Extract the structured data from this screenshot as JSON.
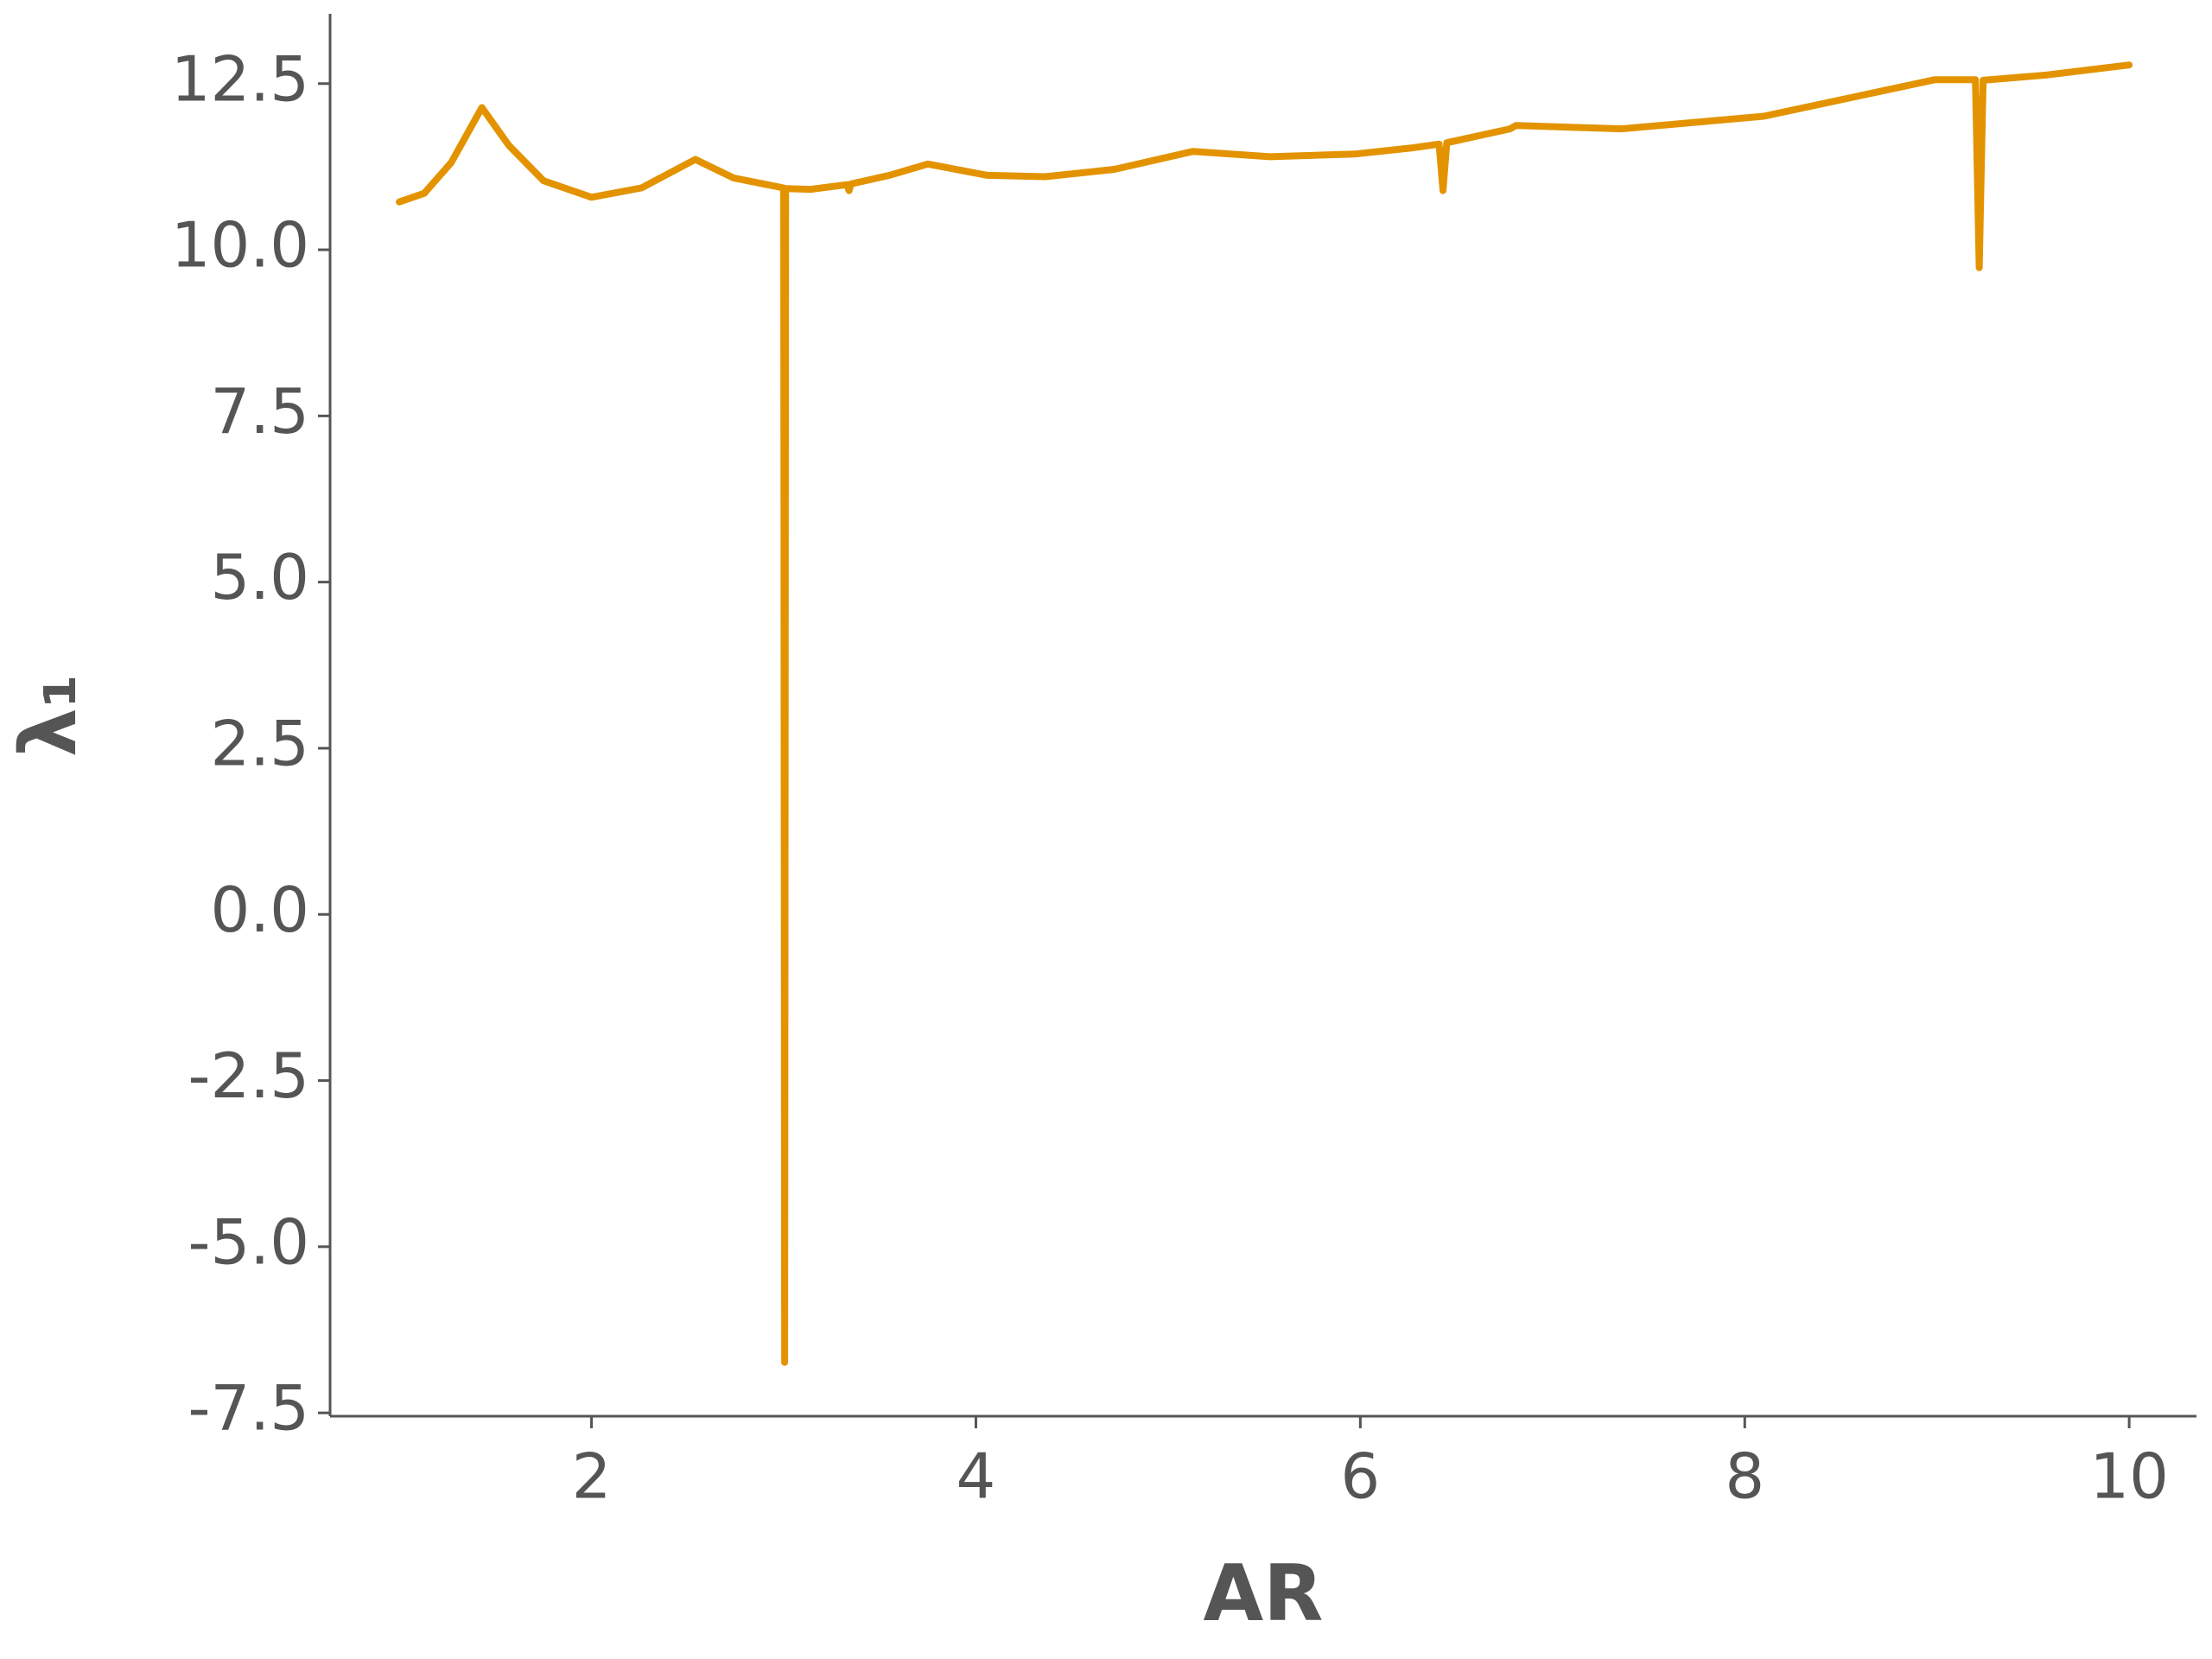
{
  "chart_data": {
    "type": "line",
    "xlabel": "AR",
    "ylabel": "λ₁",
    "x": [
      1.0,
      1.13,
      1.27,
      1.43,
      1.57,
      1.75,
      2.0,
      2.26,
      2.54,
      2.74,
      3.0,
      3.005,
      3.01,
      3.14,
      3.33,
      3.34,
      3.35,
      3.55,
      3.75,
      4.06,
      4.36,
      4.72,
      5.13,
      5.53,
      5.97,
      6.26,
      6.41,
      6.43,
      6.45,
      6.78,
      6.81,
      7.36,
      8.1,
      8.99,
      9.2,
      9.22,
      9.24,
      9.57,
      10.0
    ],
    "values": [
      10.72,
      10.85,
      11.31,
      12.14,
      11.57,
      11.04,
      10.79,
      10.93,
      11.36,
      11.08,
      10.93,
      -6.74,
      10.92,
      10.91,
      10.98,
      10.89,
      10.99,
      11.12,
      11.29,
      11.12,
      11.1,
      11.21,
      11.48,
      11.4,
      11.44,
      11.53,
      11.59,
      10.89,
      11.61,
      11.82,
      11.87,
      11.82,
      12.01,
      12.56,
      12.56,
      9.73,
      12.55,
      12.63,
      12.78
    ],
    "color": "#e39300",
    "xlim": [
      0.64,
      10.35
    ],
    "xticks": [
      2,
      4,
      6,
      8,
      10
    ],
    "ylim": [
      -7.55,
      13.55
    ],
    "yticks": [
      -7.5,
      {
        "value": -5,
        "label": "-5.0"
      },
      -2.5,
      {
        "value": 0,
        "label": "0.0"
      },
      2.5,
      {
        "value": 5,
        "label": "5.0"
      },
      7.5,
      {
        "value": 10,
        "label": "10.0"
      },
      12.5
    ]
  }
}
